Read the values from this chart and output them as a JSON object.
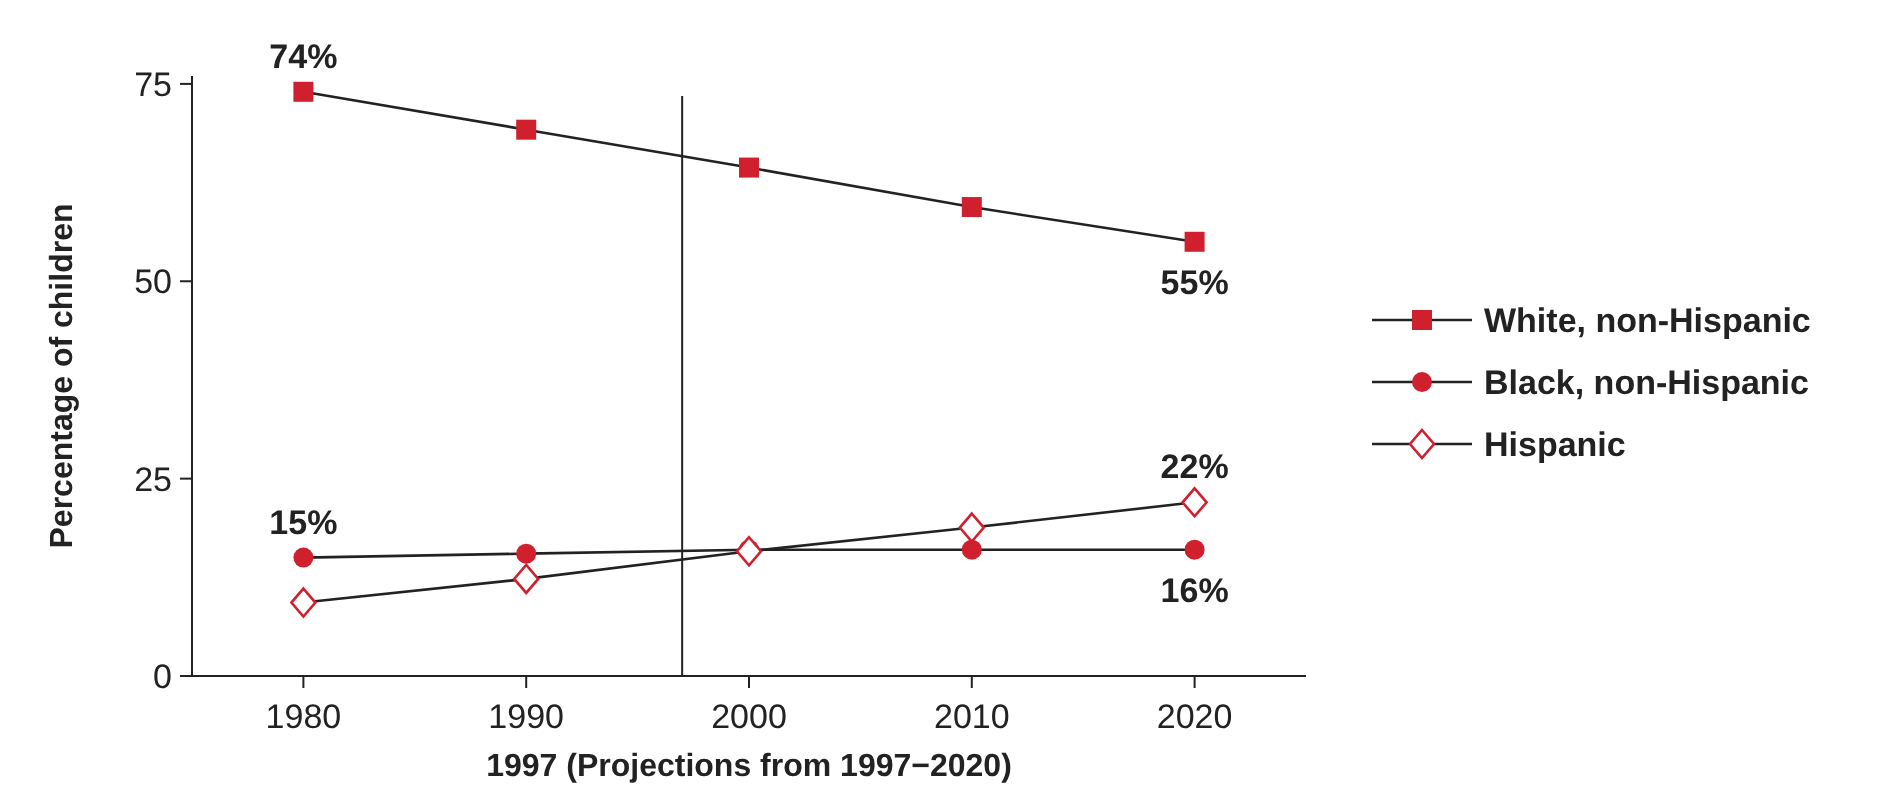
{
  "chart_data": {
    "type": "line",
    "xlabel": "1997 (Projections from 1997−2020)",
    "ylabel": "Percentage of children",
    "x": [
      1980,
      1990,
      2000,
      2010,
      2020
    ],
    "xlim": [
      1975,
      2025
    ],
    "xticks": [
      1980,
      1990,
      2000,
      2010,
      2020
    ],
    "ylim": [
      0,
      76
    ],
    "yticks": [
      0,
      25,
      50,
      75
    ],
    "series": [
      {
        "name": "White, non-Hispanic",
        "color": "#d0202e",
        "marker": "square",
        "values": [
          74,
          69.2,
          64.4,
          59.4,
          55
        ],
        "value_labels": [
          "74%",
          null,
          null,
          null,
          "55%"
        ]
      },
      {
        "name": "Black, non-Hispanic",
        "color": "#d0202e",
        "marker": "circle",
        "values": [
          15,
          15.5,
          16,
          16,
          16
        ],
        "value_labels": [
          "15%",
          null,
          null,
          null,
          "16%"
        ]
      },
      {
        "name": "Hispanic",
        "color": "#d0202e",
        "marker": "diamond",
        "values": [
          9.3,
          12.3,
          15.8,
          18.8,
          22
        ],
        "value_labels": [
          null,
          null,
          null,
          null,
          "22%"
        ]
      }
    ],
    "ref_lines": [
      {
        "axis": "x",
        "value": 1997
      }
    ],
    "legend": "right",
    "grid": false
  }
}
